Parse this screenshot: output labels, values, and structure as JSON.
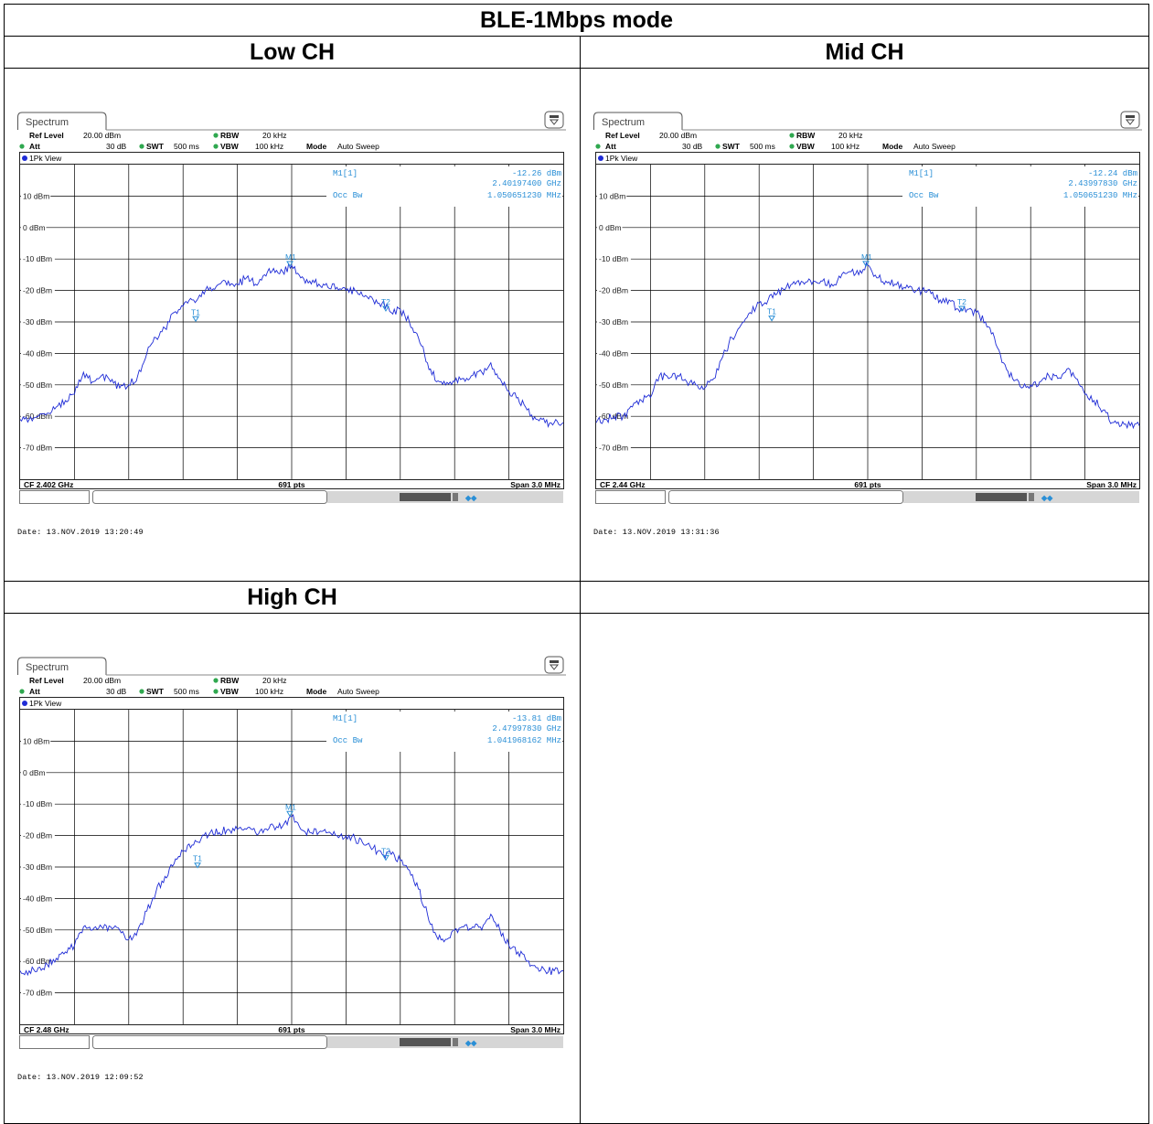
{
  "page_title": "BLE-1Mbps mode",
  "colors": {
    "trace": "#1e2bd6",
    "marker_text": "#2a8fd6",
    "grid": "#000000",
    "status_blue": "#2a8fd6"
  },
  "instrument": {
    "tab_label": "Spectrum",
    "ref_level_label": "Ref Level",
    "ref_level_value": "20.00 dBm",
    "att_label": "Att",
    "att_value": "30 dB",
    "swt_label": "SWT",
    "swt_value": "500 ms",
    "rbw_label": "RBW",
    "rbw_value": "20 kHz",
    "vbw_label": "VBW",
    "vbw_value": "100 kHz",
    "mode_label": "Mode",
    "mode_value": "Auto Sweep",
    "view_label": "1Pk View",
    "marker_label": "M1[1]",
    "occ_label": "Occ Bw",
    "points": "691 pts",
    "span": "Span 3.0 MHz",
    "y_tick_labels": [
      "10 dBm",
      "0 dBm",
      "-10 dBm",
      "-20 dBm",
      "-30 dBm",
      "-40 dBm",
      "-50 dBm",
      "-60 dBm",
      "-70 dBm"
    ]
  },
  "chart_data": [
    {
      "type": "line",
      "title": "Low CH",
      "cf": "CF 2.402 GHz",
      "marker_level": "-12.26 dBm",
      "marker_freq": "2.40197400 GHz",
      "occ_bw": "1.050651230 MHz",
      "date": "Date: 13.NOV.2019  13:20:49",
      "xlim": [
        -1.5,
        1.5
      ],
      "ylim": [
        -80,
        20
      ],
      "series": [
        {
          "x": [
            -1.5,
            -1.45,
            -1.4,
            -1.35,
            -1.3,
            -1.25,
            -1.2,
            -1.15,
            -1.1,
            -1.05,
            -1.0,
            -0.95,
            -0.9,
            -0.85,
            -0.8,
            -0.75,
            -0.7,
            -0.65,
            -0.6,
            -0.55,
            -0.5,
            -0.45,
            -0.4,
            -0.35,
            -0.3,
            -0.25,
            -0.2,
            -0.15,
            -0.1,
            -0.05,
            0.0,
            0.05,
            0.1,
            0.15,
            0.2,
            0.25,
            0.3,
            0.35,
            0.4,
            0.45,
            0.5,
            0.55,
            0.6,
            0.65,
            0.7,
            0.75,
            0.8,
            0.85,
            0.9,
            0.95,
            1.0,
            1.05,
            1.1,
            1.15,
            1.2,
            1.25,
            1.3,
            1.35,
            1.4,
            1.45,
            1.5
          ],
          "y": [
            -61,
            -61,
            -60,
            -59,
            -57,
            -55,
            -53,
            -46,
            -49,
            -47,
            -49,
            -51,
            -50,
            -47,
            -40,
            -35,
            -32,
            -27,
            -25,
            -23,
            -22,
            -19,
            -18,
            -17,
            -18,
            -16,
            -18,
            -15,
            -13,
            -14,
            -12,
            -16,
            -17,
            -18,
            -19,
            -19,
            -20,
            -20,
            -22,
            -23,
            -24,
            -27,
            -26,
            -30,
            -35,
            -43,
            -49,
            -50,
            -49,
            -48,
            -47,
            -46,
            -43,
            -48,
            -52,
            -54,
            -58,
            -61,
            -62,
            -62,
            -62
          ]
        }
      ],
      "markers": [
        {
          "label": "M1",
          "x": -0.01,
          "y": -12.26
        },
        {
          "label": "T1",
          "x": -0.53,
          "y": -29.8
        },
        {
          "label": "T2",
          "x": 0.52,
          "y": -26.5
        }
      ]
    },
    {
      "type": "line",
      "title": "Mid CH",
      "cf": "CF 2.44 GHz",
      "marker_level": "-12.24 dBm",
      "marker_freq": "2.43997830 GHz",
      "occ_bw": "1.050651230 MHz",
      "date": "Date: 13.NOV.2019  13:31:36",
      "xlim": [
        -1.5,
        1.5
      ],
      "ylim": [
        -80,
        20
      ],
      "series": [
        {
          "x": [
            -1.5,
            -1.45,
            -1.4,
            -1.35,
            -1.3,
            -1.25,
            -1.2,
            -1.15,
            -1.1,
            -1.05,
            -1.0,
            -0.95,
            -0.9,
            -0.85,
            -0.8,
            -0.75,
            -0.7,
            -0.65,
            -0.6,
            -0.55,
            -0.5,
            -0.45,
            -0.4,
            -0.35,
            -0.3,
            -0.25,
            -0.2,
            -0.15,
            -0.1,
            -0.05,
            0.0,
            0.05,
            0.1,
            0.15,
            0.2,
            0.25,
            0.3,
            0.35,
            0.4,
            0.45,
            0.5,
            0.55,
            0.6,
            0.65,
            0.7,
            0.75,
            0.8,
            0.85,
            0.9,
            0.95,
            1.0,
            1.05,
            1.1,
            1.15,
            1.2,
            1.25,
            1.3,
            1.35,
            1.4,
            1.45,
            1.5
          ],
          "y": [
            -62,
            -61,
            -60,
            -60,
            -57,
            -55,
            -54,
            -47,
            -48,
            -47,
            -49,
            -50,
            -51,
            -48,
            -41,
            -35,
            -31,
            -27,
            -24,
            -23,
            -21,
            -19,
            -18,
            -18,
            -17,
            -17,
            -18,
            -16,
            -14,
            -15,
            -12,
            -16,
            -17,
            -18,
            -19,
            -20,
            -20,
            -21,
            -23,
            -23,
            -26,
            -26,
            -27,
            -30,
            -35,
            -43,
            -48,
            -51,
            -50,
            -49,
            -47,
            -48,
            -45,
            -48,
            -53,
            -55,
            -58,
            -62,
            -63,
            -63,
            -63
          ]
        }
      ],
      "markers": [
        {
          "label": "M1",
          "x": -0.01,
          "y": -12.24
        },
        {
          "label": "T1",
          "x": -0.53,
          "y": -29.6
        },
        {
          "label": "T2",
          "x": 0.52,
          "y": -26.5
        }
      ]
    },
    {
      "type": "line",
      "title": "High CH",
      "cf": "CF 2.48 GHz",
      "marker_level": "-13.81 dBm",
      "marker_freq": "2.47997830 GHz",
      "occ_bw": "1.041968162 MHz",
      "date": "Date: 13.NOV.2019  12:09:52",
      "xlim": [
        -1.5,
        1.5
      ],
      "ylim": [
        -80,
        20
      ],
      "series": [
        {
          "x": [
            -1.5,
            -1.45,
            -1.4,
            -1.35,
            -1.3,
            -1.25,
            -1.2,
            -1.15,
            -1.1,
            -1.05,
            -1.0,
            -0.95,
            -0.9,
            -0.85,
            -0.8,
            -0.75,
            -0.7,
            -0.65,
            -0.6,
            -0.55,
            -0.5,
            -0.45,
            -0.4,
            -0.35,
            -0.3,
            -0.25,
            -0.2,
            -0.15,
            -0.1,
            -0.05,
            0.0,
            0.05,
            0.1,
            0.15,
            0.2,
            0.25,
            0.3,
            0.35,
            0.4,
            0.45,
            0.5,
            0.55,
            0.6,
            0.65,
            0.7,
            0.75,
            0.8,
            0.85,
            0.9,
            0.95,
            1.0,
            1.05,
            1.1,
            1.15,
            1.2,
            1.25,
            1.3,
            1.35,
            1.4,
            1.45,
            1.5
          ],
          "y": [
            -63,
            -63,
            -62,
            -61,
            -59,
            -57,
            -55,
            -49,
            -50,
            -49,
            -49,
            -50,
            -53,
            -50,
            -44,
            -38,
            -33,
            -29,
            -25,
            -23,
            -21,
            -19,
            -19,
            -18,
            -18,
            -18,
            -19,
            -18,
            -17,
            -17,
            -14,
            -18,
            -19,
            -19,
            -19,
            -20,
            -20,
            -21,
            -23,
            -24,
            -26,
            -26,
            -28,
            -31,
            -37,
            -45,
            -52,
            -53,
            -50,
            -49,
            -49,
            -50,
            -45,
            -50,
            -55,
            -57,
            -60,
            -62,
            -63,
            -63,
            -63
          ]
        }
      ],
      "markers": [
        {
          "label": "M1",
          "x": -0.01,
          "y": -13.81
        },
        {
          "label": "T1",
          "x": -0.52,
          "y": -30.2
        },
        {
          "label": "T2",
          "x": 0.52,
          "y": -27.8
        }
      ]
    }
  ]
}
